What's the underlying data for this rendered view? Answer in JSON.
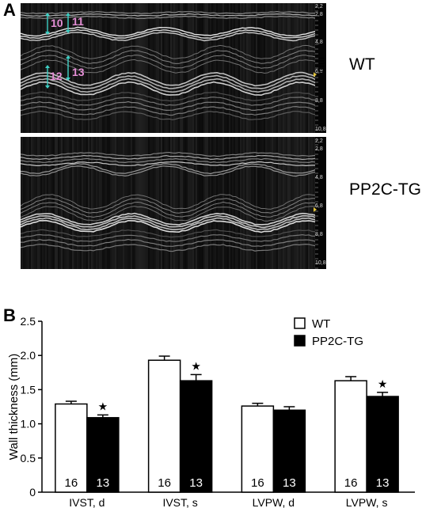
{
  "panel_a": {
    "letter": "A",
    "top_label": "WT",
    "bottom_label": "PP2C-TG",
    "unit": "mm",
    "scale_ticks": [
      "2,2",
      "2,8",
      "4,8",
      "6,8",
      "8,8",
      "10,8"
    ],
    "measurements": [
      "10",
      "11",
      "12",
      "13"
    ],
    "arrow_color": "#3fd1c6",
    "label_color": "#e58fd6"
  },
  "panel_b": {
    "letter": "B"
  },
  "chart_data": {
    "type": "bar",
    "ylabel": "Wall thickness (mm)",
    "ylim": [
      0,
      2.5
    ],
    "yticks": [
      "0",
      "0.5",
      "1.0",
      "1.5",
      "2.0",
      "2.5"
    ],
    "categories": [
      "IVST, d",
      "IVST, s",
      "LVPW, d",
      "LVPW, s"
    ],
    "legend_position": "top-right",
    "series": [
      {
        "name": "WT",
        "color": "#ffffff",
        "values": [
          1.29,
          1.93,
          1.26,
          1.63
        ],
        "errors": [
          0.04,
          0.06,
          0.04,
          0.06
        ],
        "n": [
          "16",
          "16",
          "16",
          "16"
        ]
      },
      {
        "name": "PP2C-TG",
        "color": "#000000",
        "values": [
          1.09,
          1.63,
          1.2,
          1.4
        ],
        "errors": [
          0.04,
          0.09,
          0.05,
          0.06
        ],
        "n": [
          "13",
          "13",
          "13",
          "13"
        ]
      }
    ],
    "significance": [
      "★",
      "★",
      "",
      "★"
    ]
  }
}
